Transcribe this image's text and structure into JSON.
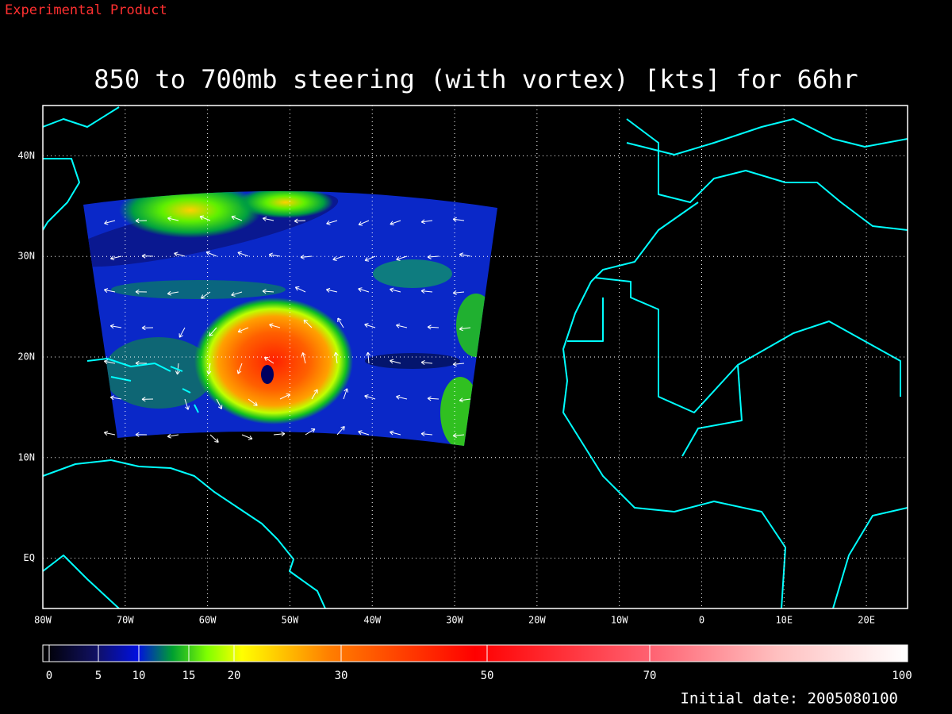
{
  "header": {
    "label": "Experimental Product",
    "title": "850 to 700mb steering (with vortex) [kts] for 66hr"
  },
  "map": {
    "lon_ticks": [
      {
        "value": -80,
        "label": "80W"
      },
      {
        "value": -70,
        "label": "70W"
      },
      {
        "value": -60,
        "label": "60W"
      },
      {
        "value": -50,
        "label": "50W"
      },
      {
        "value": -40,
        "label": "40W"
      },
      {
        "value": -30,
        "label": "30W"
      },
      {
        "value": -20,
        "label": "20W"
      },
      {
        "value": -10,
        "label": "10W"
      },
      0,
      {
        "value": 10,
        "label": "10E"
      },
      {
        "value": 20,
        "label": "20E"
      }
    ],
    "lat_ticks": [
      {
        "value": 0,
        "label": "EQ"
      },
      {
        "value": 10,
        "label": "10N"
      },
      {
        "value": 20,
        "label": "20N"
      },
      {
        "value": 30,
        "label": "30N"
      },
      {
        "value": 40,
        "label": "40N"
      }
    ]
  },
  "colorbar": {
    "ticks": [
      0,
      5,
      10,
      15,
      20,
      30,
      50,
      70,
      100
    ]
  },
  "footer": {
    "initial_date": "Initial date: 2005080100"
  }
}
